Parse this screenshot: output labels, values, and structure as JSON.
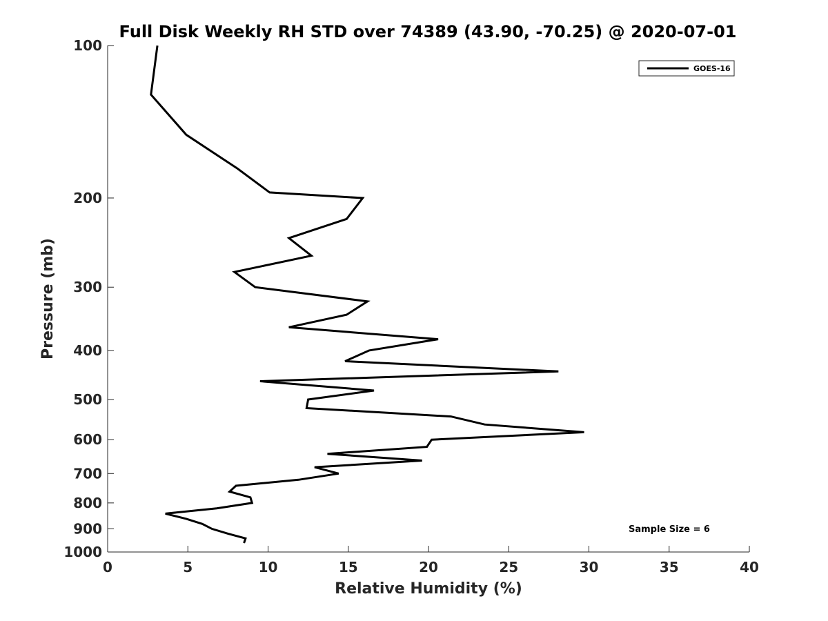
{
  "chart_data": {
    "type": "line",
    "title": "Full Disk Weekly RH STD over 74389 (43.90, -70.25) @ 2020-07-01",
    "xlabel": "Relative Humidity (%)",
    "ylabel": "Pressure (mb)",
    "xlim": [
      0,
      40
    ],
    "ylim": [
      100,
      1000
    ],
    "yscale": "log",
    "y_reversed": true,
    "xticks": [
      0,
      5,
      10,
      15,
      20,
      25,
      30,
      35,
      40
    ],
    "yticks": [
      100,
      200,
      300,
      400,
      500,
      600,
      700,
      800,
      900,
      1000
    ],
    "grid": false,
    "legend_position": "top-right",
    "annotation": "Sample Size = 6",
    "series": [
      {
        "name": "GOES-16",
        "color": "#000000",
        "points": [
          [
            3.1,
            100
          ],
          [
            2.7,
            125
          ],
          [
            4.9,
            150
          ],
          [
            8.1,
            175
          ],
          [
            10.1,
            195
          ],
          [
            15.9,
            200
          ],
          [
            14.9,
            220
          ],
          [
            11.3,
            240
          ],
          [
            12.7,
            260
          ],
          [
            7.9,
            280
          ],
          [
            9.2,
            300
          ],
          [
            16.2,
            320
          ],
          [
            14.9,
            340
          ],
          [
            11.3,
            360
          ],
          [
            20.6,
            380
          ],
          [
            16.3,
            400
          ],
          [
            14.8,
            420
          ],
          [
            28.1,
            440
          ],
          [
            9.5,
            460
          ],
          [
            16.6,
            480
          ],
          [
            12.5,
            500
          ],
          [
            12.4,
            520
          ],
          [
            21.4,
            540
          ],
          [
            23.5,
            560
          ],
          [
            29.7,
            580
          ],
          [
            20.2,
            600
          ],
          [
            19.9,
            620
          ],
          [
            13.7,
            640
          ],
          [
            19.6,
            660
          ],
          [
            12.9,
            680
          ],
          [
            14.4,
            700
          ],
          [
            11.9,
            720
          ],
          [
            8.0,
            740
          ],
          [
            7.6,
            760
          ],
          [
            8.9,
            780
          ],
          [
            9.0,
            800
          ],
          [
            6.8,
            820
          ],
          [
            3.6,
            840
          ],
          [
            4.9,
            860
          ],
          [
            5.9,
            880
          ],
          [
            6.5,
            900
          ],
          [
            7.5,
            920
          ],
          [
            8.6,
            940
          ],
          [
            8.5,
            960
          ]
        ]
      }
    ]
  }
}
